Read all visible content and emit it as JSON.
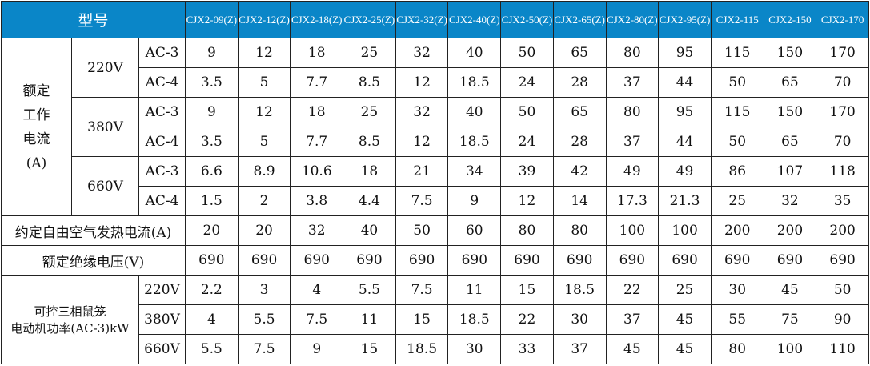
{
  "header": {
    "title": "型号",
    "models": [
      "CJX2-09(Z)",
      "CJX2-12(Z)",
      "CJX2-18(Z)",
      "CJX2-25(Z)",
      "CJX2-32(Z)",
      "CJX2-40(Z)",
      "CJX2-50(Z)",
      "CJX2-65(Z)",
      "CJX2-80(Z)",
      "CJX2-95(Z)",
      "CJX2-115",
      "CJX2-150",
      "CJX2-170"
    ]
  },
  "rated_current": {
    "label": "额定\n工作\n电流\n(A)",
    "groups": [
      {
        "voltage": "220V",
        "rows": [
          {
            "cat": "AC-3",
            "values": [
              "9",
              "12",
              "18",
              "25",
              "32",
              "40",
              "50",
              "65",
              "80",
              "95",
              "115",
              "150",
              "170"
            ]
          },
          {
            "cat": "AC-4",
            "values": [
              "3.5",
              "5",
              "7.7",
              "8.5",
              "12",
              "18.5",
              "24",
              "28",
              "37",
              "44",
              "50",
              "65",
              "70"
            ]
          }
        ]
      },
      {
        "voltage": "380V",
        "rows": [
          {
            "cat": "AC-3",
            "values": [
              "9",
              "12",
              "18",
              "25",
              "32",
              "40",
              "50",
              "65",
              "80",
              "95",
              "115",
              "150",
              "170"
            ]
          },
          {
            "cat": "AC-4",
            "values": [
              "3.5",
              "5",
              "7.7",
              "8.5",
              "12",
              "18.5",
              "24",
              "28",
              "37",
              "44",
              "50",
              "65",
              "70"
            ]
          }
        ]
      },
      {
        "voltage": "660V",
        "rows": [
          {
            "cat": "AC-3",
            "values": [
              "6.6",
              "8.9",
              "10.6",
              "18",
              "21",
              "34",
              "39",
              "42",
              "49",
              "49",
              "86",
              "107",
              "118"
            ]
          },
          {
            "cat": "AC-4",
            "values": [
              "1.5",
              "2",
              "3.8",
              "4.4",
              "7.5",
              "9",
              "12",
              "14",
              "17.3",
              "21.3",
              "25",
              "32",
              "35"
            ]
          }
        ]
      }
    ]
  },
  "thermal": {
    "label": "约定自由空气发热电流(A)",
    "values": [
      "20",
      "20",
      "32",
      "40",
      "50",
      "60",
      "80",
      "80",
      "100",
      "100",
      "200",
      "200",
      "200"
    ]
  },
  "insulation": {
    "label": "额定绝缘电压(V)",
    "values": [
      "690",
      "690",
      "690",
      "690",
      "690",
      "690",
      "690",
      "690",
      "690",
      "690",
      "690",
      "690",
      "690"
    ]
  },
  "motor_power": {
    "label_line1": "可控三相鼠笼",
    "label_line2": "电动机功率(AC-3)kW",
    "rows": [
      {
        "voltage": "220V",
        "values": [
          "2.2",
          "3",
          "4",
          "5.5",
          "7.5",
          "11",
          "15",
          "18.5",
          "22",
          "25",
          "30",
          "45",
          "50"
        ]
      },
      {
        "voltage": "380V",
        "values": [
          "4",
          "5.5",
          "7.5",
          "11",
          "15",
          "18.5",
          "22",
          "30",
          "37",
          "45",
          "55",
          "75",
          "90"
        ]
      },
      {
        "voltage": "660V",
        "values": [
          "5.5",
          "7.5",
          "9",
          "15",
          "18.5",
          "30",
          "33",
          "37",
          "45",
          "45",
          "80",
          "100",
          "110"
        ]
      }
    ]
  },
  "colors": {
    "header_bg": "#0a86c8",
    "header_text": "#ffffff"
  }
}
